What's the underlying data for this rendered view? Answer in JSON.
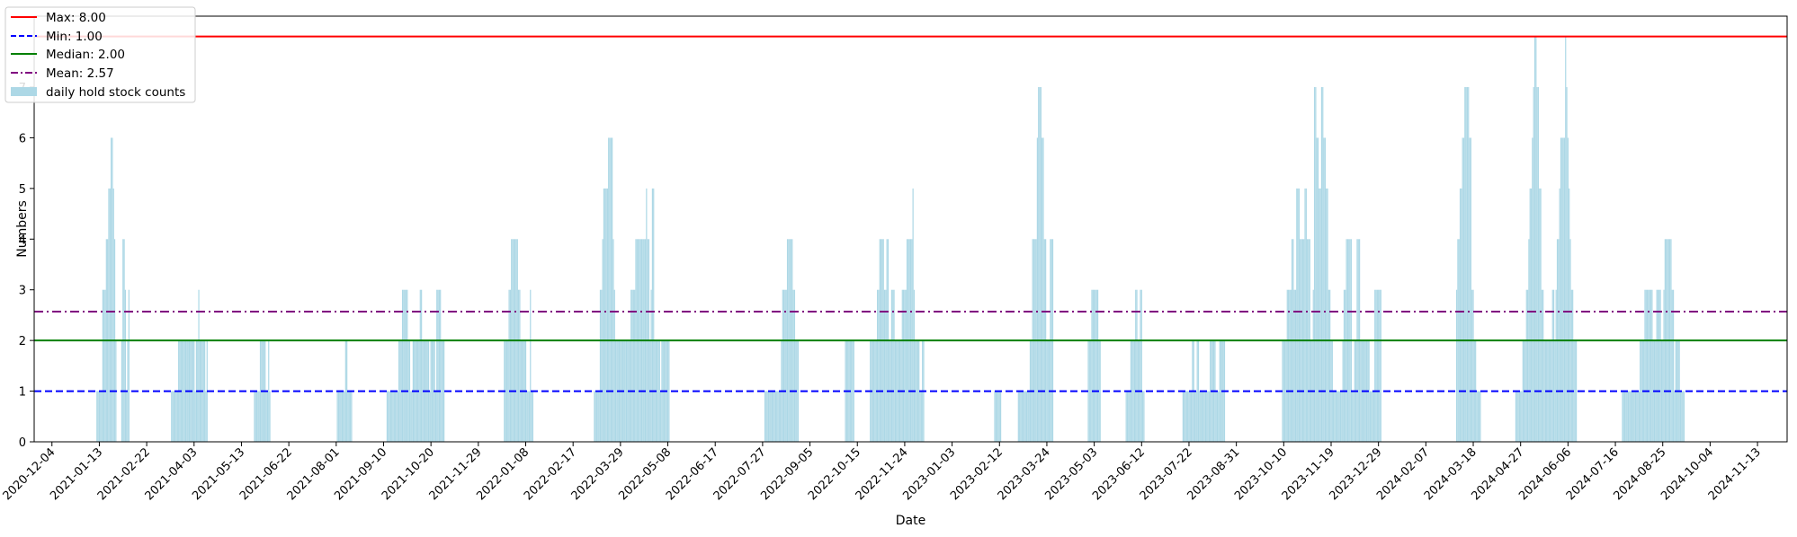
{
  "chart_data": {
    "type": "bar",
    "xlabel": "Date",
    "ylabel": "Numbers",
    "ylim": [
      0,
      8.4
    ],
    "xlim": [
      "2020-11-19",
      "2024-12-08"
    ],
    "yticks": [
      0,
      1,
      2,
      3,
      4,
      5,
      6,
      7
    ],
    "xticks": [
      "2020-12-04",
      "2021-01-13",
      "2021-02-22",
      "2021-04-03",
      "2021-05-13",
      "2021-06-22",
      "2021-08-01",
      "2021-09-10",
      "2021-10-20",
      "2021-11-29",
      "2022-01-08",
      "2022-02-17",
      "2022-03-29",
      "2022-05-08",
      "2022-06-17",
      "2022-07-27",
      "2022-09-05",
      "2022-10-15",
      "2022-11-24",
      "2023-01-03",
      "2023-02-12",
      "2023-03-24",
      "2023-05-03",
      "2023-06-12",
      "2023-07-22",
      "2023-08-31",
      "2023-10-10",
      "2023-11-19",
      "2023-12-29",
      "2024-02-07",
      "2024-03-18",
      "2024-04-27",
      "2024-06-06",
      "2024-07-16",
      "2024-08-25",
      "2024-10-04",
      "2024-11-13"
    ],
    "reference_lines": [
      {
        "label": "Max: 8.00",
        "value": 8.0,
        "color": "#ff0000",
        "style": "solid"
      },
      {
        "label": "Min: 1.00",
        "value": 1.0,
        "color": "#0000ff",
        "style": "dashed"
      },
      {
        "label": "Median: 2.00",
        "value": 2.0,
        "color": "#008000",
        "style": "solid"
      },
      {
        "label": "Mean: 2.57",
        "value": 2.57,
        "color": "#800080",
        "style": "dashdot"
      }
    ],
    "bar_series_name": "daily hold stock counts",
    "bar_color": "#add8e6",
    "legend_position": "upper-left",
    "segments": [
      {
        "start": "2021-01-11",
        "values": [
          1,
          1,
          1,
          1,
          1,
          3,
          3,
          3,
          4,
          4,
          5,
          5,
          6,
          6,
          5,
          4,
          2
        ]
      },
      {
        "start": "2021-02-01",
        "values": [
          2,
          4,
          4,
          3,
          1,
          2,
          3
        ]
      },
      {
        "start": "2021-03-15",
        "values": [
          1,
          1,
          1,
          1,
          1,
          1,
          2,
          2,
          2,
          2,
          2,
          2,
          2,
          2,
          2,
          2,
          2,
          2,
          2,
          2,
          1,
          2,
          2,
          3,
          2,
          2,
          2,
          2,
          2,
          1,
          2
        ]
      },
      {
        "start": "2021-05-24",
        "values": [
          1,
          1,
          1,
          1,
          1,
          2,
          2,
          2,
          2,
          2,
          1,
          1,
          2,
          1
        ]
      },
      {
        "start": "2021-08-02",
        "values": [
          1,
          1,
          1,
          1,
          1,
          1,
          1,
          2,
          2,
          1,
          1,
          1,
          1
        ]
      },
      {
        "start": "2021-09-13",
        "values": [
          1,
          1,
          1,
          1,
          1,
          1,
          1,
          1,
          1,
          1,
          2,
          2,
          2,
          3,
          3,
          3,
          3,
          3,
          2,
          2,
          1,
          1,
          2,
          2,
          2,
          2,
          2,
          2,
          3,
          3,
          2,
          2,
          2,
          2,
          2,
          2,
          1,
          2,
          2,
          2,
          2,
          1,
          3,
          3,
          3,
          3,
          2,
          2,
          2
        ]
      },
      {
        "start": "2021-12-21",
        "values": [
          2,
          2,
          2,
          2,
          3,
          3,
          4,
          4,
          4,
          4,
          4,
          4,
          3,
          3,
          2,
          2,
          2,
          2,
          2,
          1,
          1,
          1,
          3,
          1,
          1
        ]
      },
      {
        "start": "2022-03-07",
        "values": [
          1,
          1,
          1,
          1,
          1,
          3,
          3,
          4,
          5,
          5,
          5,
          5,
          6,
          6,
          6,
          6,
          4,
          3,
          2,
          2,
          2,
          2,
          2,
          2,
          2,
          2,
          2,
          2,
          2,
          2,
          2,
          3,
          3,
          3,
          3,
          4,
          4,
          4,
          4,
          4,
          4,
          4,
          4,
          4,
          5,
          4,
          4,
          2,
          3,
          5,
          5,
          2,
          2,
          2,
          2,
          2,
          1,
          2,
          2,
          2,
          2,
          2,
          2,
          2
        ]
      },
      {
        "start": "2022-07-29",
        "values": [
          1,
          1,
          1,
          1,
          1,
          1,
          1,
          1,
          1,
          1,
          1,
          1,
          1,
          1,
          2,
          3,
          3,
          3,
          3,
          4,
          4,
          4,
          4,
          4,
          3,
          3,
          2,
          2,
          2
        ]
      },
      {
        "start": "2022-10-05",
        "values": [
          2,
          2,
          2,
          2,
          2,
          2,
          2,
          2
        ]
      },
      {
        "start": "2022-10-26",
        "values": [
          2,
          2,
          2,
          2,
          2,
          2,
          3,
          3,
          4,
          4,
          4,
          4,
          3,
          3,
          4,
          4,
          2,
          2,
          3,
          3,
          3,
          2,
          2,
          2,
          2,
          2,
          2,
          3,
          3,
          3,
          3,
          4,
          4,
          4,
          4,
          4,
          5,
          3,
          2,
          2,
          2,
          2,
          1,
          1,
          2,
          2
        ]
      },
      {
        "start": "2023-02-08",
        "values": [
          1,
          1,
          1,
          1,
          1,
          1
        ]
      },
      {
        "start": "2023-02-28",
        "values": [
          1,
          1,
          1,
          1,
          1,
          1,
          1,
          1,
          1,
          1,
          2,
          2,
          4,
          4,
          4,
          4,
          6,
          7,
          7,
          7,
          6,
          6,
          4,
          4,
          2,
          2,
          2,
          4,
          4,
          4
        ]
      },
      {
        "start": "2023-04-28",
        "values": [
          2,
          2,
          2,
          3,
          3,
          3,
          3,
          3,
          3,
          2,
          2
        ]
      },
      {
        "start": "2023-05-30",
        "values": [
          1,
          1,
          1,
          1,
          2,
          2,
          2,
          2,
          3,
          3,
          2,
          2,
          3,
          3,
          1,
          1
        ]
      },
      {
        "start": "2023-07-17",
        "values": [
          1,
          1,
          1,
          1,
          1,
          1,
          1,
          1,
          2,
          2,
          1,
          1,
          2,
          2,
          1,
          1,
          1,
          1,
          1,
          1,
          1,
          1,
          1,
          2,
          2,
          2,
          2,
          2,
          1,
          1,
          1,
          2,
          2,
          2,
          2,
          2
        ]
      },
      {
        "start": "2023-10-09",
        "values": [
          2,
          2,
          2,
          2,
          3,
          3,
          3,
          3,
          4,
          4,
          3,
          3,
          5,
          5,
          5,
          4,
          4,
          4,
          4,
          5,
          5,
          4,
          4,
          4,
          2,
          2,
          3,
          7,
          7,
          6,
          6,
          5,
          5,
          7,
          7,
          6,
          6,
          5,
          5,
          3,
          3,
          2,
          2,
          1,
          1,
          1,
          1,
          1,
          1,
          1,
          1,
          2,
          3,
          3,
          4,
          4,
          4,
          4,
          4,
          1,
          1,
          2,
          2,
          4,
          4,
          4,
          2,
          2,
          2,
          2,
          2,
          2,
          2,
          2,
          1,
          1,
          1,
          1,
          3,
          3,
          3,
          3,
          3,
          3
        ]
      },
      {
        "start": "2024-03-04",
        "values": [
          3,
          4,
          4,
          5,
          5,
          6,
          6,
          7,
          7,
          7,
          7,
          6,
          6,
          3,
          3,
          2,
          2,
          1,
          1,
          1,
          1
        ]
      },
      {
        "start": "2024-04-23",
        "values": [
          1,
          1,
          1,
          1,
          1,
          1,
          2,
          2,
          2,
          3,
          3,
          4,
          5,
          5,
          6,
          7,
          8,
          8,
          7,
          7,
          5,
          5,
          3,
          3,
          2,
          2,
          2,
          2,
          2,
          2,
          2,
          3,
          3,
          2,
          3,
          4,
          4,
          5,
          6,
          6,
          6,
          6,
          8,
          7,
          6,
          5,
          4,
          3,
          3,
          2,
          2,
          2
        ]
      },
      {
        "start": "2024-07-22",
        "values": [
          1,
          1,
          1,
          1,
          1,
          1,
          1,
          1,
          1,
          1,
          1,
          1,
          1,
          1,
          1,
          2,
          2,
          2,
          2,
          3,
          3,
          3,
          3,
          3,
          3,
          3,
          2,
          2,
          2,
          3,
          3,
          3,
          3,
          2,
          2,
          3,
          4,
          4,
          4,
          4,
          4,
          4,
          3,
          3,
          1,
          2,
          2,
          2,
          2,
          1,
          1,
          1,
          1
        ]
      }
    ]
  }
}
